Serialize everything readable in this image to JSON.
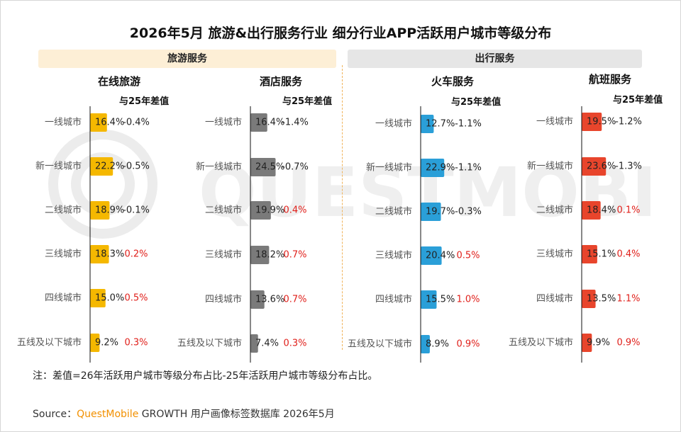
{
  "title": "2026年5月 旅游&出行服务行业 细分行业APP活跃用户城市等级分布",
  "groups": {
    "travel": "旅游服务",
    "mobility": "出行服务"
  },
  "diff_header": "与25年差值",
  "note": "注：差值=26年活跃用户城市等级分布占比-25年活跃用户城市等级分布占比。",
  "source": {
    "prefix": "Source：",
    "brand": "QuestMobile",
    "suffix": " GROWTH 用户画像标签数据库 2026年5月"
  },
  "watermark": "QUESTMOBILE",
  "colors": {
    "online_travel": "#f5b800",
    "hotel": "#7a7a7a",
    "train": "#2a9fd8",
    "flight": "#e8452c",
    "positive_diff": "#e0201b",
    "negative_diff": "#222222",
    "travel_header_bg": "#fdefd6",
    "mobility_header_bg": "#e6e6e6"
  },
  "chart_data": [
    {
      "type": "bar",
      "title": "在线旅游",
      "categories": [
        "一线城市",
        "新一线城市",
        "二线城市",
        "三线城市",
        "四线城市",
        "五线及以下城市"
      ],
      "values": [
        16.4,
        22.2,
        18.9,
        18.3,
        15.0,
        9.2
      ],
      "value_labels": [
        "16.4%",
        "22.2%",
        "18.9%",
        "18.3%",
        "15.0%",
        "9.2%"
      ],
      "diffs": [
        -0.4,
        -0.5,
        -0.1,
        0.2,
        0.5,
        0.3
      ],
      "diff_labels": [
        "-0.4%",
        "-0.5%",
        "-0.1%",
        "0.2%",
        "0.5%",
        "0.3%"
      ]
    },
    {
      "type": "bar",
      "title": "酒店服务",
      "categories": [
        "一线城市",
        "新一线城市",
        "二线城市",
        "三线城市",
        "四线城市",
        "五线及以下城市"
      ],
      "values": [
        16.4,
        24.5,
        19.9,
        18.2,
        13.6,
        7.4
      ],
      "value_labels": [
        "16.4%",
        "24.5%",
        "19.9%",
        "18.2%",
        "13.6%",
        "7.4%"
      ],
      "diffs": [
        -1.4,
        -0.7,
        0.4,
        0.7,
        0.7,
        0.3
      ],
      "diff_labels": [
        "-1.4%",
        "-0.7%",
        "0.4%",
        "0.7%",
        "0.7%",
        "0.3%"
      ]
    },
    {
      "type": "bar",
      "title": "火车服务",
      "categories": [
        "一线城市",
        "新一线城市",
        "二线城市",
        "三线城市",
        "四线城市",
        "五线及以下城市"
      ],
      "values": [
        12.7,
        22.9,
        19.7,
        20.4,
        15.5,
        8.9
      ],
      "value_labels": [
        "12.7%",
        "22.9%",
        "19.7%",
        "20.4%",
        "15.5%",
        "8.9%"
      ],
      "diffs": [
        -1.1,
        -1.1,
        -0.3,
        0.5,
        1.0,
        0.9
      ],
      "diff_labels": [
        "-1.1%",
        "-1.1%",
        "-0.3%",
        "0.5%",
        "1.0%",
        "0.9%"
      ]
    },
    {
      "type": "bar",
      "title": "航班服务",
      "categories": [
        "一线城市",
        "新一线城市",
        "二线城市",
        "三线城市",
        "四线城市",
        "五线及以下城市"
      ],
      "values": [
        19.5,
        23.6,
        18.4,
        15.1,
        13.5,
        9.9
      ],
      "value_labels": [
        "19.5%",
        "23.6%",
        "18.4%",
        "15.1%",
        "13.5%",
        "9.9%"
      ],
      "diffs": [
        -1.2,
        -1.3,
        0.1,
        0.4,
        1.1,
        0.9
      ],
      "diff_labels": [
        "-1.2%",
        "-1.3%",
        "0.1%",
        "0.4%",
        "1.1%",
        "0.9%"
      ]
    }
  ]
}
